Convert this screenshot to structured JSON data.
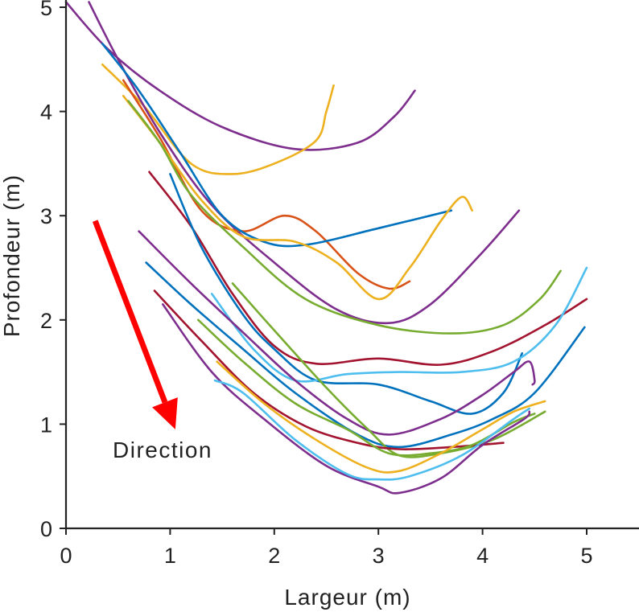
{
  "chart_data": {
    "type": "line",
    "title": "",
    "xlabel": "Largeur (m)",
    "ylabel": "Profondeur (m)",
    "xlim": [
      0,
      5.5
    ],
    "ylim": [
      0,
      5
    ],
    "xticks": [
      "0",
      "1",
      "2",
      "3",
      "4",
      "5"
    ],
    "yticks": [
      "0",
      "1",
      "2",
      "3",
      "4",
      "5"
    ],
    "grid": false,
    "legend": "none",
    "annotation": {
      "text": "Direction",
      "arrow_color": "#ff0000",
      "arrow_from": [
        0.28,
        2.95
      ],
      "arrow_to": [
        1.05,
        0.95
      ]
    },
    "series": [
      {
        "color": "#7e2f8e",
        "points": [
          [
            0.0,
            5.05
          ],
          [
            0.4,
            4.6
          ],
          [
            0.9,
            4.2
          ],
          [
            1.5,
            3.85
          ],
          [
            2.2,
            3.64
          ],
          [
            2.8,
            3.7
          ],
          [
            3.15,
            3.95
          ],
          [
            3.35,
            4.2
          ]
        ]
      },
      {
        "color": "#edb120",
        "points": [
          [
            0.35,
            4.45
          ],
          [
            0.75,
            4.05
          ],
          [
            1.2,
            3.5
          ],
          [
            1.6,
            3.4
          ],
          [
            2.0,
            3.5
          ],
          [
            2.4,
            3.72
          ],
          [
            2.5,
            4.0
          ],
          [
            2.57,
            4.25
          ]
        ]
      },
      {
        "color": "#7e2f8e",
        "points": [
          [
            0.22,
            5.05
          ],
          [
            0.5,
            4.5
          ],
          [
            0.9,
            3.8
          ],
          [
            1.4,
            3.1
          ],
          [
            2.0,
            2.55
          ],
          [
            2.6,
            2.1
          ],
          [
            3.1,
            1.97
          ],
          [
            3.5,
            2.15
          ],
          [
            4.0,
            2.65
          ],
          [
            4.35,
            3.05
          ]
        ]
      },
      {
        "color": "#d95319",
        "points": [
          [
            0.55,
            4.3
          ],
          [
            0.9,
            3.75
          ],
          [
            1.3,
            3.05
          ],
          [
            1.7,
            2.85
          ],
          [
            2.1,
            3.0
          ],
          [
            2.4,
            2.85
          ],
          [
            2.8,
            2.45
          ],
          [
            3.1,
            2.3
          ],
          [
            3.3,
            2.37
          ]
        ]
      },
      {
        "color": "#0072bd",
        "points": [
          [
            0.35,
            4.65
          ],
          [
            0.7,
            4.2
          ],
          [
            1.1,
            3.6
          ],
          [
            1.5,
            3.0
          ],
          [
            1.9,
            2.75
          ],
          [
            2.3,
            2.72
          ],
          [
            3.0,
            2.88
          ],
          [
            3.7,
            3.05
          ]
        ]
      },
      {
        "color": "#edb120",
        "points": [
          [
            0.55,
            4.15
          ],
          [
            0.9,
            3.7
          ],
          [
            1.3,
            3.15
          ],
          [
            1.7,
            2.8
          ],
          [
            2.2,
            2.75
          ],
          [
            2.6,
            2.55
          ],
          [
            3.0,
            2.2
          ],
          [
            3.3,
            2.5
          ],
          [
            3.6,
            2.95
          ],
          [
            3.8,
            3.18
          ],
          [
            3.9,
            3.05
          ]
        ]
      },
      {
        "color": "#77ac30",
        "points": [
          [
            0.6,
            4.1
          ],
          [
            0.9,
            3.7
          ],
          [
            1.2,
            3.2
          ],
          [
            1.7,
            2.7
          ],
          [
            2.3,
            2.2
          ],
          [
            3.0,
            1.95
          ],
          [
            3.7,
            1.87
          ],
          [
            4.2,
            1.95
          ],
          [
            4.55,
            2.2
          ],
          [
            4.75,
            2.47
          ]
        ]
      },
      {
        "color": "#a2142f",
        "points": [
          [
            0.8,
            3.42
          ],
          [
            1.2,
            2.9
          ],
          [
            1.6,
            2.25
          ],
          [
            2.0,
            1.75
          ],
          [
            2.4,
            1.58
          ],
          [
            3.0,
            1.63
          ],
          [
            3.6,
            1.57
          ],
          [
            4.1,
            1.7
          ],
          [
            4.6,
            1.95
          ],
          [
            5.0,
            2.2
          ]
        ]
      },
      {
        "color": "#0072bd",
        "points": [
          [
            1.0,
            3.4
          ],
          [
            1.3,
            2.7
          ],
          [
            1.7,
            2.05
          ],
          [
            2.0,
            1.72
          ],
          [
            2.4,
            1.42
          ],
          [
            3.0,
            1.38
          ],
          [
            3.5,
            1.22
          ],
          [
            3.9,
            1.1
          ],
          [
            4.2,
            1.3
          ],
          [
            4.38,
            1.68
          ]
        ]
      },
      {
        "color": "#4dbeee",
        "points": [
          [
            1.4,
            2.25
          ],
          [
            1.8,
            1.72
          ],
          [
            2.2,
            1.42
          ],
          [
            2.7,
            1.48
          ],
          [
            3.2,
            1.5
          ],
          [
            3.8,
            1.5
          ],
          [
            4.3,
            1.6
          ],
          [
            4.7,
            1.95
          ],
          [
            5.0,
            2.5
          ]
        ]
      },
      {
        "color": "#7e2f8e",
        "points": [
          [
            0.7,
            2.85
          ],
          [
            1.2,
            2.35
          ],
          [
            1.7,
            1.88
          ],
          [
            2.2,
            1.42
          ],
          [
            2.7,
            1.05
          ],
          [
            3.1,
            0.9
          ],
          [
            3.6,
            1.05
          ],
          [
            4.0,
            1.28
          ],
          [
            4.3,
            1.5
          ],
          [
            4.45,
            1.6
          ],
          [
            4.5,
            1.42
          ],
          [
            4.48,
            1.38
          ]
        ]
      },
      {
        "color": "#0072bd",
        "points": [
          [
            0.77,
            2.55
          ],
          [
            1.2,
            2.15
          ],
          [
            1.7,
            1.72
          ],
          [
            2.2,
            1.3
          ],
          [
            2.8,
            0.9
          ],
          [
            3.2,
            0.78
          ],
          [
            3.7,
            0.9
          ],
          [
            4.1,
            1.05
          ],
          [
            4.5,
            1.3
          ],
          [
            4.98,
            1.93
          ]
        ]
      },
      {
        "color": "#77ac30",
        "points": [
          [
            1.6,
            2.35
          ],
          [
            2.0,
            1.9
          ],
          [
            2.5,
            1.35
          ],
          [
            2.9,
            0.95
          ],
          [
            3.2,
            0.7
          ],
          [
            3.6,
            0.72
          ],
          [
            4.1,
            0.85
          ],
          [
            4.6,
            1.12
          ]
        ]
      },
      {
        "color": "#a2142f",
        "points": [
          [
            0.85,
            2.28
          ],
          [
            1.3,
            1.8
          ],
          [
            1.8,
            1.3
          ],
          [
            2.3,
            0.98
          ],
          [
            2.8,
            0.82
          ],
          [
            3.2,
            0.76
          ],
          [
            3.7,
            0.78
          ],
          [
            4.2,
            0.82
          ]
        ]
      },
      {
        "color": "#77ac30",
        "points": [
          [
            1.27,
            2.0
          ],
          [
            1.7,
            1.6
          ],
          [
            2.2,
            1.2
          ],
          [
            2.7,
            0.95
          ],
          [
            3.1,
            0.72
          ],
          [
            3.5,
            0.72
          ],
          [
            3.9,
            0.8
          ],
          [
            4.3,
            1.02
          ],
          [
            4.5,
            1.1
          ]
        ]
      },
      {
        "color": "#7e2f8e",
        "points": [
          [
            0.93,
            2.15
          ],
          [
            1.4,
            1.5
          ],
          [
            1.9,
            1.05
          ],
          [
            2.5,
            0.6
          ],
          [
            3.0,
            0.4
          ],
          [
            3.2,
            0.34
          ],
          [
            3.6,
            0.48
          ],
          [
            4.0,
            0.8
          ],
          [
            4.4,
            1.05
          ],
          [
            4.45,
            1.12
          ]
        ]
      },
      {
        "color": "#edb120",
        "points": [
          [
            1.45,
            1.6
          ],
          [
            1.9,
            1.2
          ],
          [
            2.4,
            0.85
          ],
          [
            2.9,
            0.58
          ],
          [
            3.2,
            0.55
          ],
          [
            3.6,
            0.72
          ],
          [
            4.0,
            0.95
          ],
          [
            4.3,
            1.12
          ],
          [
            4.6,
            1.22
          ]
        ]
      },
      {
        "color": "#4dbeee",
        "points": [
          [
            1.43,
            1.42
          ],
          [
            1.7,
            1.3
          ],
          [
            2.2,
            0.85
          ],
          [
            2.7,
            0.52
          ],
          [
            3.0,
            0.47
          ],
          [
            3.3,
            0.5
          ],
          [
            3.8,
            0.7
          ],
          [
            4.3,
            1.05
          ],
          [
            4.45,
            1.15
          ]
        ]
      }
    ]
  }
}
